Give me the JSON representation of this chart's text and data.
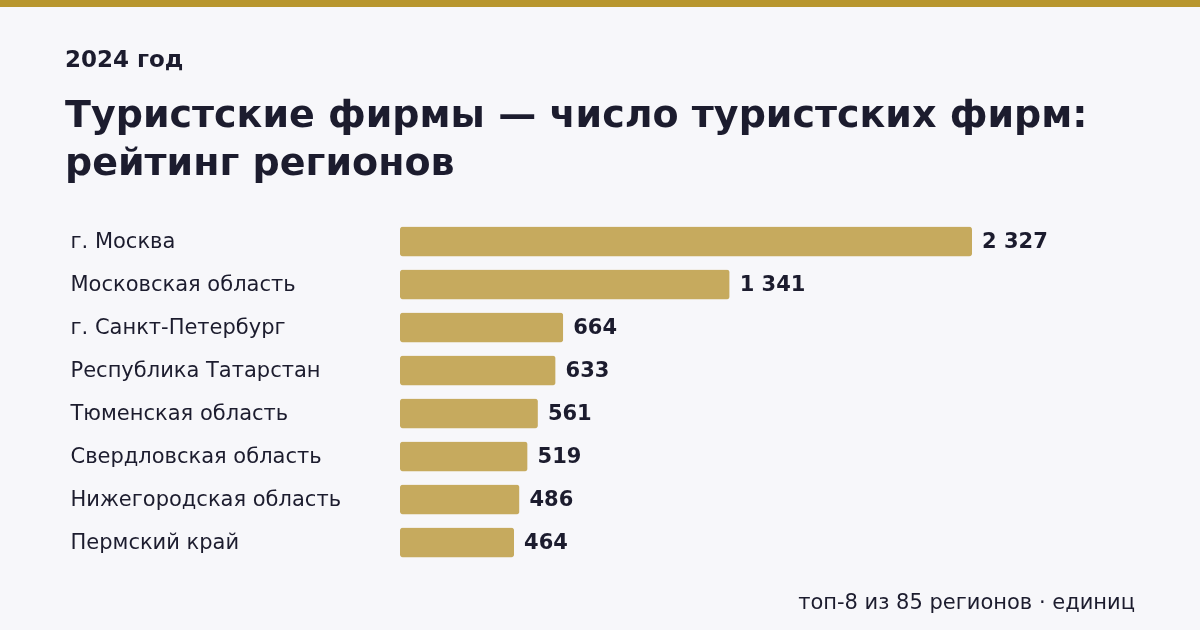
{
  "chart_data": {
    "type": "bar",
    "orientation": "horizontal",
    "subtitle": "2024 год",
    "title": "Туристские фирмы — число туристских фирм: рейтинг регионов",
    "categories": [
      "г. Москва",
      "Московская область",
      "г. Санкт-Петербург",
      "Республика Татарстан",
      "Тюменская область",
      "Свердловская область",
      "Нижегородская область",
      "Пермский край"
    ],
    "values": [
      2327,
      1341,
      664,
      633,
      561,
      519,
      486,
      464
    ],
    "value_labels": [
      "2 327",
      "1 341",
      "664",
      "633",
      "561",
      "519",
      "486",
      "464"
    ],
    "color": "#c6aa5e",
    "annotations": [
      "топ-8 из 85 регионов · единиц"
    ]
  }
}
